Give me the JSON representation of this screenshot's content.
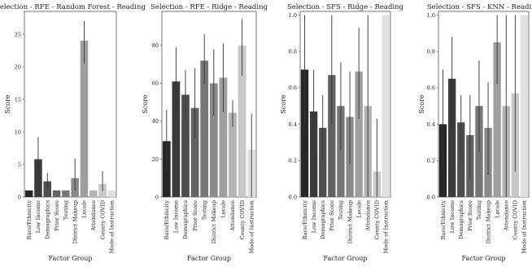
{
  "chart_data": [
    {
      "type": "bar",
      "title": "Selection - RFE - Random Forest - Reading",
      "xlabel": "Factor Group",
      "ylabel": "Score",
      "categories": [
        "Race/Ethnicity",
        "Low Income",
        "Demographics",
        "Prior Score",
        "Testing",
        "District Makeup",
        "Locale",
        "Attendance",
        "County COVID",
        "Mode of Instruction"
      ],
      "values": [
        1,
        5.8,
        2.4,
        1,
        1,
        2.9,
        24,
        1,
        2,
        1
      ],
      "error_low": [
        1,
        3.5,
        1.2,
        1,
        1,
        1,
        20.5,
        1,
        0.9,
        1
      ],
      "error_high": [
        1,
        9.2,
        3.7,
        1,
        1,
        5.9,
        27,
        1,
        4,
        1
      ],
      "ylim": [
        0,
        28.5
      ],
      "yticks": [
        0,
        5,
        10,
        15,
        20,
        25
      ],
      "colors": [
        "#262626",
        "#3a3a3a",
        "#4e4e4e",
        "#626262",
        "#767676",
        "#8a8a8a",
        "#9e9e9e",
        "#b3b3b3",
        "#c8c8c8",
        "#e0e0e0"
      ],
      "grid": false
    },
    {
      "type": "bar",
      "title": "Selection - RFE - Ridge - Reading",
      "xlabel": "Factor Group",
      "ylabel": "Score",
      "categories": [
        "Race/Ethnicity",
        "Low Income",
        "Demographics",
        "Prior Score",
        "Testing",
        "District Makeup",
        "Locale",
        "Attendance",
        "County COVID",
        "Mode of Instruction"
      ],
      "values": [
        29.5,
        61,
        54,
        47,
        72,
        60,
        63,
        44.5,
        80,
        25
      ],
      "error_low": [
        14,
        45,
        41,
        31,
        60,
        43,
        45,
        37,
        64,
        0
      ],
      "error_high": [
        46,
        79,
        67,
        68,
        86,
        78,
        81,
        51,
        94,
        44
      ],
      "ylim": [
        0,
        98
      ],
      "yticks": [
        0,
        20,
        40,
        60,
        80
      ],
      "colors": [
        "#262626",
        "#3a3a3a",
        "#4e4e4e",
        "#626262",
        "#767676",
        "#8a8a8a",
        "#9e9e9e",
        "#b3b3b3",
        "#c8c8c8",
        "#e0e0e0"
      ],
      "grid": false
    },
    {
      "type": "bar",
      "title": "Selection - SFS - Ridge - Reading",
      "xlabel": "Factor Group",
      "ylabel": "Score",
      "categories": [
        "Race/Ethnicity",
        "Low Income",
        "Demographics",
        "Prior Score",
        "Testing",
        "District Makeup",
        "Locale",
        "Attendance",
        "County COVID",
        "Mode of Instruction"
      ],
      "values": [
        0.7,
        0.47,
        0.38,
        0.67,
        0.5,
        0.44,
        0.69,
        0.5,
        0.14,
        1.0
      ],
      "error_low": [
        0.4,
        0.25,
        0.2,
        0.4,
        0.26,
        0.18,
        0.43,
        0.0,
        0.0,
        1.0
      ],
      "error_high": [
        1.0,
        0.7,
        0.56,
        1.0,
        0.74,
        0.69,
        0.93,
        1.0,
        0.43,
        1.0
      ],
      "ylim": [
        0,
        1.02
      ],
      "yticks": [
        0.0,
        0.2,
        0.4,
        0.6,
        0.8,
        1.0
      ],
      "colors": [
        "#262626",
        "#3a3a3a",
        "#4e4e4e",
        "#626262",
        "#767676",
        "#8a8a8a",
        "#9e9e9e",
        "#b3b3b3",
        "#c8c8c8",
        "#e0e0e0"
      ],
      "grid": false
    },
    {
      "type": "bar",
      "title": "Selection - SFS - KNN - Reading",
      "xlabel": "Factor Group",
      "ylabel": "Score",
      "categories": [
        "Race/Ethnicity",
        "Low Income",
        "Demographics",
        "Prior Score",
        "Testing",
        "District Makeup",
        "Locale",
        "Attendance",
        "County COVID",
        "Mode of Instruction"
      ],
      "values": [
        0.4,
        0.65,
        0.41,
        0.34,
        0.5,
        0.38,
        0.85,
        0.5,
        0.57,
        1.0
      ],
      "error_low": [
        0.13,
        0.38,
        0.19,
        0.1,
        0.25,
        0.12,
        0.62,
        0.0,
        0.14,
        1.0
      ],
      "error_high": [
        0.7,
        0.88,
        0.56,
        0.56,
        0.75,
        0.63,
        1.0,
        1.0,
        1.0,
        1.0
      ],
      "ylim": [
        0,
        1.02
      ],
      "yticks": [
        0.0,
        0.2,
        0.4,
        0.6,
        0.8,
        1.0
      ],
      "colors": [
        "#262626",
        "#3a3a3a",
        "#4e4e4e",
        "#626262",
        "#767676",
        "#8a8a8a",
        "#9e9e9e",
        "#b3b3b3",
        "#c8c8c8",
        "#e0e0e0"
      ],
      "grid": false
    }
  ]
}
